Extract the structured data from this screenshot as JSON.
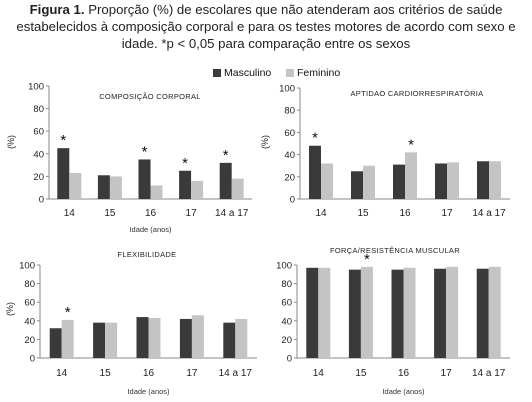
{
  "caption": {
    "bold": "Figura 1.",
    "text": " Proporção (%) de escolares que não atenderam aos critérios de saúde estabelecidos à composição corporal e para os testes motores de acordo com sexo e idade. *p < 0,05 para comparação entre os sexos"
  },
  "legend": [
    {
      "name": "Masculino",
      "color": "#3a3a3a"
    },
    {
      "name": "Feminino",
      "color": "#c4c4c4"
    }
  ],
  "chart_data": [
    {
      "type": "bar",
      "title": "COMPOSIÇÃO CORPORAL",
      "ylabel": "(%)",
      "xlabel": "Idade (anos)",
      "categories": [
        "14",
        "15",
        "16",
        "17",
        "14 a 17"
      ],
      "ylim": [
        0,
        100
      ],
      "yticks": [
        0,
        20,
        40,
        60,
        80,
        100
      ],
      "series": [
        {
          "name": "Masculino",
          "values": [
            45,
            21,
            35,
            25,
            32
          ]
        },
        {
          "name": "Feminino",
          "values": [
            23,
            20,
            12,
            16,
            18
          ]
        }
      ],
      "significant": [
        true,
        false,
        true,
        true,
        true
      ]
    },
    {
      "type": "bar",
      "title": "APTIDAO CARDIORRESPIRATÓRIA",
      "ylabel": "(%)",
      "xlabel": "",
      "categories": [
        "14",
        "15",
        "16",
        "17",
        "14 a 17"
      ],
      "ylim": [
        0,
        100
      ],
      "yticks": [
        0,
        20,
        40,
        60,
        80,
        100
      ],
      "series": [
        {
          "name": "Masculino",
          "values": [
            48,
            25,
            31,
            32,
            34
          ]
        },
        {
          "name": "Feminino",
          "values": [
            32,
            30,
            42,
            33,
            34
          ]
        }
      ],
      "significant": [
        true,
        false,
        true,
        false,
        false
      ]
    },
    {
      "type": "bar",
      "title": "FLEXIBILIDADE",
      "ylabel": "(%)",
      "xlabel": "Idade (anos)",
      "categories": [
        "14",
        "15",
        "16",
        "17",
        "14 a 17"
      ],
      "ylim": [
        0,
        100
      ],
      "yticks": [
        0,
        20,
        40,
        60,
        80,
        100
      ],
      "series": [
        {
          "name": "Masculino",
          "values": [
            32,
            38,
            44,
            42,
            38
          ]
        },
        {
          "name": "Feminino",
          "values": [
            41,
            38,
            43,
            46,
            42
          ]
        }
      ],
      "significant": [
        true,
        false,
        false,
        false,
        false
      ]
    },
    {
      "type": "bar",
      "title": "FORÇA/RESISTÊNCIA MUSCULAR",
      "ylabel": "",
      "xlabel": "Idade (anos)",
      "categories": [
        "14",
        "15",
        "16",
        "17",
        "14 a 17"
      ],
      "ylim": [
        0,
        100
      ],
      "yticks": [
        0,
        20,
        40,
        60,
        80,
        100
      ],
      "series": [
        {
          "name": "Masculino",
          "values": [
            97,
            95,
            95,
            96,
            96
          ]
        },
        {
          "name": "Feminino",
          "values": [
            97,
            98,
            97,
            98,
            98
          ]
        }
      ],
      "significant": [
        false,
        true,
        false,
        false,
        false
      ]
    }
  ]
}
